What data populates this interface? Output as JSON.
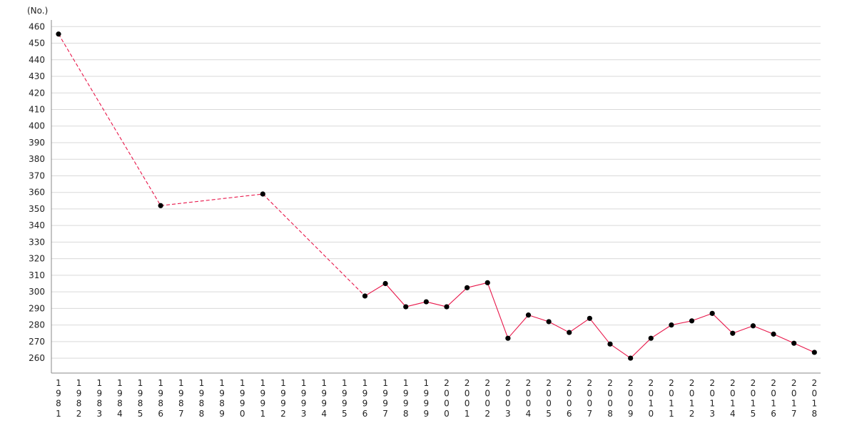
{
  "chart_data": {
    "type": "line",
    "unit_label": "(No.)",
    "y_ticks": [
      260,
      270,
      280,
      290,
      300,
      310,
      320,
      330,
      340,
      350,
      360,
      370,
      380,
      390,
      400,
      410,
      420,
      430,
      440,
      450,
      460
    ],
    "ylim": [
      251,
      464
    ],
    "grid": "horizontal",
    "categories": [
      "1981",
      "1982",
      "1983",
      "1984",
      "1985",
      "1986",
      "1987",
      "1988",
      "1989",
      "1990",
      "1991",
      "1992",
      "1993",
      "1994",
      "1995",
      "1996",
      "1997",
      "1998",
      "1999",
      "2000",
      "2001",
      "2002",
      "2003",
      "2004",
      "2005",
      "2006",
      "2007",
      "2008",
      "2009",
      "2010",
      "2011",
      "2012",
      "2013",
      "2014",
      "2015",
      "2016",
      "2017",
      "2018"
    ],
    "series": [
      {
        "color": "#e8174a",
        "points": [
          {
            "x": "1981",
            "y": 455.5
          },
          {
            "x": "1986",
            "y": 352
          },
          {
            "x": "1991",
            "y": 359
          },
          {
            "x": "1996",
            "y": 297.5
          },
          {
            "x": "1997",
            "y": 305
          },
          {
            "x": "1998",
            "y": 291
          },
          {
            "x": "1999",
            "y": 294
          },
          {
            "x": "2000",
            "y": 291
          },
          {
            "x": "2001",
            "y": 302.5
          },
          {
            "x": "2002",
            "y": 305.5
          },
          {
            "x": "2003",
            "y": 272
          },
          {
            "x": "2004",
            "y": 286
          },
          {
            "x": "2005",
            "y": 282
          },
          {
            "x": "2006",
            "y": 275.5
          },
          {
            "x": "2007",
            "y": 284
          },
          {
            "x": "2008",
            "y": 268.5
          },
          {
            "x": "2009",
            "y": 260
          },
          {
            "x": "2010",
            "y": 272
          },
          {
            "x": "2011",
            "y": 280
          },
          {
            "x": "2012",
            "y": 282.5
          },
          {
            "x": "2013",
            "y": 287
          },
          {
            "x": "2014",
            "y": 275
          },
          {
            "x": "2015",
            "y": 279.5
          },
          {
            "x": "2016",
            "y": 274.5
          },
          {
            "x": "2017",
            "y": 269
          },
          {
            "x": "2018",
            "y": 263.5
          }
        ],
        "dashed_segments_before": [
          "1986",
          "1991",
          "1996"
        ]
      }
    ],
    "marker_color": "#000000"
  }
}
